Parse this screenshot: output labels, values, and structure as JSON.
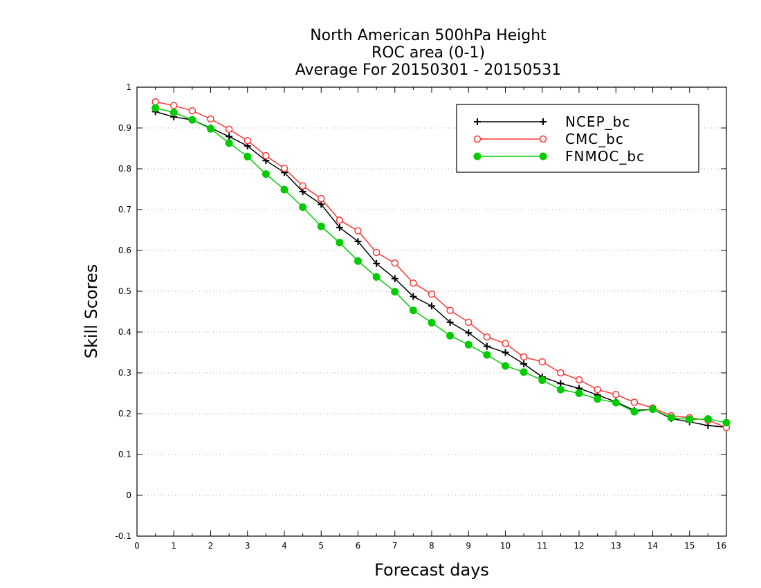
{
  "chart_data": {
    "type": "line",
    "title": [
      "North American 500hPa Height",
      "ROC area (0-1)",
      "Average For 20150301 - 20150531"
    ],
    "xlabel": "Forecast days",
    "ylabel": "Skill Scores",
    "xlim": [
      0,
      16
    ],
    "ylim": [
      -0.1,
      1
    ],
    "x_ticks": [
      "0",
      "1",
      "2",
      "3",
      "4",
      "5",
      "6",
      "7",
      "8",
      "9",
      "10",
      "11",
      "12",
      "13",
      "14",
      "15",
      "16"
    ],
    "y_ticks": [
      "-0.1",
      "0",
      "0.1",
      "0.2",
      "0.3",
      "0.4",
      "0.5",
      "0.6",
      "0.7",
      "0.8",
      "0.9",
      "1"
    ],
    "grid": "horizontal dotted",
    "legend_position": "top-right",
    "x": [
      0.5,
      1,
      1.5,
      2,
      2.5,
      3,
      3.5,
      4,
      4.5,
      5,
      5.5,
      6,
      6.5,
      7,
      7.5,
      8,
      8.5,
      9,
      9.5,
      10,
      10.5,
      11,
      11.5,
      12,
      12.5,
      13,
      13.5,
      14,
      14.5,
      15,
      15.5,
      16
    ],
    "series": [
      {
        "name": "NCEP_bc",
        "color": "#000000",
        "marker": "plus",
        "values": [
          0.94,
          0.927,
          0.92,
          0.9,
          0.879,
          0.856,
          0.82,
          0.791,
          0.744,
          0.713,
          0.656,
          0.622,
          0.568,
          0.531,
          0.487,
          0.464,
          0.424,
          0.398,
          0.365,
          0.35,
          0.322,
          0.29,
          0.274,
          0.262,
          0.246,
          0.229,
          0.208,
          0.211,
          0.188,
          0.18,
          0.171,
          0.167
        ]
      },
      {
        "name": "CMC_bc",
        "color": "#ff3333",
        "marker": "open-circle",
        "values": [
          0.964,
          0.955,
          0.942,
          0.922,
          0.897,
          0.869,
          0.832,
          0.801,
          0.758,
          0.727,
          0.674,
          0.648,
          0.595,
          0.569,
          0.52,
          0.493,
          0.453,
          0.424,
          0.388,
          0.372,
          0.339,
          0.327,
          0.3,
          0.283,
          0.259,
          0.247,
          0.228,
          0.214,
          0.195,
          0.19,
          0.184,
          0.166
        ]
      },
      {
        "name": "FNMOC_bc",
        "color": "#00cc00",
        "marker": "filled-circle",
        "values": [
          0.949,
          0.938,
          0.92,
          0.898,
          0.863,
          0.83,
          0.787,
          0.749,
          0.706,
          0.659,
          0.619,
          0.574,
          0.535,
          0.499,
          0.453,
          0.423,
          0.391,
          0.369,
          0.344,
          0.317,
          0.302,
          0.282,
          0.259,
          0.25,
          0.236,
          0.227,
          0.205,
          0.211,
          0.19,
          0.186,
          0.187,
          0.178
        ]
      }
    ]
  }
}
